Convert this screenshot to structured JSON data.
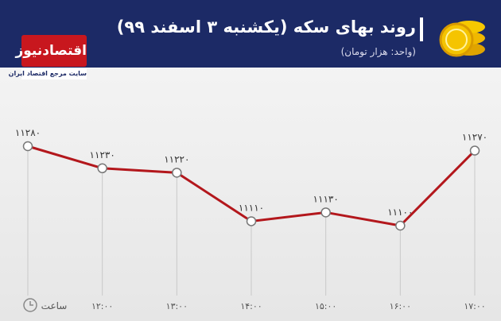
{
  "chart_data": {
    "type": "line",
    "title": "روند بهای سکه (یکشنبه ۳ اسفند ۹۹)",
    "subtitle": "(واحد: هزار تومان)",
    "logo": "اقتصادنیوز",
    "tagline": "سایت مرجع اقتصاد ایران",
    "x_label": "ساعت",
    "categories": [
      null,
      "۱۲:۰۰",
      "۱۳:۰۰",
      "۱۴:۰۰",
      "۱۵:۰۰",
      "۱۶:۰۰",
      "۱۷:۰۰"
    ],
    "values": [
      11280,
      11230,
      11220,
      11110,
      11130,
      11100,
      11270
    ],
    "value_labels": [
      "۱۱۲۸۰",
      "۱۱۲۳۰",
      "۱۱۲۲۰",
      "۱۱۱۱۰",
      "۱۱۱۳۰",
      "۱۱۱۰۰",
      "۱۱۲۷۰"
    ],
    "color": "#b3171c"
  }
}
